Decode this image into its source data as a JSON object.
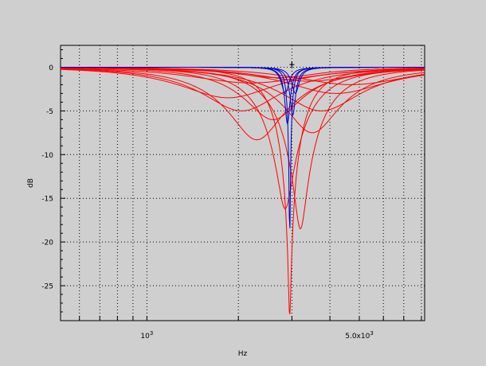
{
  "chart_data": {
    "type": "line",
    "xlabel": "Hz",
    "ylabel": "dB",
    "xscale": "log",
    "xlim": [
      520,
      8200
    ],
    "ylim": [
      -29,
      2.5
    ],
    "grid": true,
    "x_tick_labels": [
      {
        "value": 1000,
        "label": "10^3"
      },
      {
        "value": 5000,
        "label": "5.0x10^3"
      }
    ],
    "y_ticks": [
      0,
      -5,
      -10,
      -15,
      -20,
      -25
    ],
    "red_series_color": "#ff0000",
    "blue_series_color": "#0000cc",
    "center_marker": {
      "x": 3000,
      "y": 0.3
    },
    "series": [
      {
        "color": "#ff0000",
        "f0": 1850,
        "depth": -3.5,
        "q": 0.9
      },
      {
        "color": "#ff0000",
        "f0": 2050,
        "depth": -5.0,
        "q": 1.0
      },
      {
        "color": "#ff0000",
        "f0": 2300,
        "depth": -8.3,
        "q": 1.1
      },
      {
        "color": "#ff0000",
        "f0": 2600,
        "depth": -6.0,
        "q": 1.3
      },
      {
        "color": "#ff0000",
        "f0": 2850,
        "depth": -16.2,
        "q": 1.6
      },
      {
        "color": "#ff0000",
        "f0": 2950,
        "depth": -28.5,
        "q": 2.4
      },
      {
        "color": "#ff0000",
        "f0": 3200,
        "depth": -18.5,
        "q": 1.6
      },
      {
        "color": "#ff0000",
        "f0": 3500,
        "depth": -7.5,
        "q": 1.2
      },
      {
        "color": "#ff0000",
        "f0": 3750,
        "depth": -5.0,
        "q": 1.0
      },
      {
        "color": "#ff0000",
        "f0": 4200,
        "depth": -3.0,
        "q": 0.9
      },
      {
        "color": "#ff0000",
        "f0": 4700,
        "depth": -2.0,
        "q": 0.85
      },
      {
        "color": "#ff0000",
        "f0": 2200,
        "depth": -1.8,
        "q": 0.8
      },
      {
        "color": "#ff0000",
        "f0": 2700,
        "depth": -1.2,
        "q": 1.2
      },
      {
        "color": "#ff0000",
        "f0": 3400,
        "depth": -1.6,
        "q": 1.0
      },
      {
        "color": "#0000cc",
        "f0": 2850,
        "depth": -3.0,
        "q": 12
      },
      {
        "color": "#0000cc",
        "f0": 2900,
        "depth": -6.5,
        "q": 14
      },
      {
        "color": "#0000cc",
        "f0": 2950,
        "depth": -20.0,
        "q": 18
      },
      {
        "color": "#0000cc",
        "f0": 3020,
        "depth": -5.5,
        "q": 14
      },
      {
        "color": "#0000cc",
        "f0": 3080,
        "depth": -3.0,
        "q": 12
      }
    ]
  }
}
